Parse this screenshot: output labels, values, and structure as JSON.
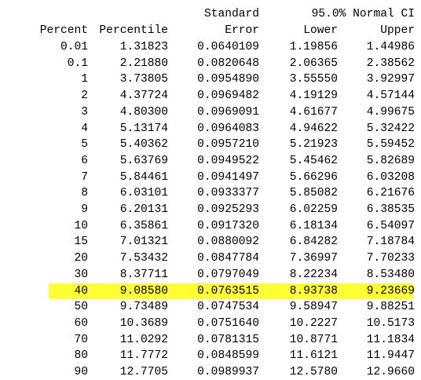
{
  "header": {
    "line1": {
      "standard": "Standard",
      "ci": "95.0% Normal CI"
    },
    "line2": {
      "percent": "Percent",
      "percentile": "Percentile",
      "error": "Error",
      "lower": "Lower",
      "upper": "Upper"
    }
  },
  "highlight_color": "#ffff33",
  "highlighted_row_index": 15,
  "rows": [
    [
      "0.01",
      "1.31823",
      "0.0640109",
      "1.19856",
      "1.44986"
    ],
    [
      "0.1",
      "2.21880",
      "0.0820648",
      "2.06365",
      "2.38562"
    ],
    [
      "1",
      "3.73805",
      "0.0954890",
      "3.55550",
      "3.92997"
    ],
    [
      "2",
      "4.37724",
      "0.0969482",
      "4.19129",
      "4.57144"
    ],
    [
      "3",
      "4.80300",
      "0.0969091",
      "4.61677",
      "4.99675"
    ],
    [
      "4",
      "5.13174",
      "0.0964083",
      "4.94622",
      "5.32422"
    ],
    [
      "5",
      "5.40362",
      "0.0957210",
      "5.21923",
      "5.59452"
    ],
    [
      "6",
      "5.63769",
      "0.0949522",
      "5.45462",
      "5.82689"
    ],
    [
      "7",
      "5.84461",
      "0.0941497",
      "5.66296",
      "6.03208"
    ],
    [
      "8",
      "6.03101",
      "0.0933377",
      "5.85082",
      "6.21676"
    ],
    [
      "9",
      "6.20131",
      "0.0925293",
      "6.02259",
      "6.38535"
    ],
    [
      "10",
      "6.35861",
      "0.0917320",
      "6.18134",
      "6.54097"
    ],
    [
      "15",
      "7.01321",
      "0.0880092",
      "6.84282",
      "7.18784"
    ],
    [
      "20",
      "7.53432",
      "0.0847784",
      "7.36997",
      "7.70233"
    ],
    [
      "30",
      "8.37711",
      "0.0797049",
      "8.22234",
      "8.53480"
    ],
    [
      "40",
      "9.08580",
      "0.0763515",
      "8.93738",
      "9.23669"
    ],
    [
      "50",
      "9.73489",
      "0.0747534",
      "9.58947",
      "9.88251"
    ],
    [
      "60",
      "10.3689",
      "0.0751640",
      "10.2227",
      "10.5173"
    ],
    [
      "70",
      "11.0292",
      "0.0781315",
      "10.8771",
      "11.1834"
    ],
    [
      "80",
      "11.7772",
      "0.0848599",
      "11.6121",
      "11.9447"
    ],
    [
      "90",
      "12.7705",
      "0.0989937",
      "12.5780",
      "12.9660"
    ]
  ]
}
